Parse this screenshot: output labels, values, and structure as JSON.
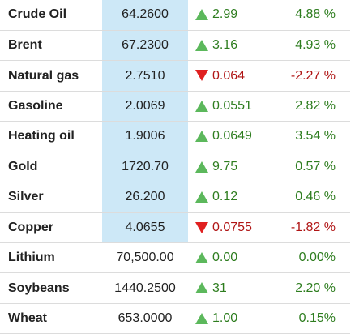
{
  "table": {
    "colors": {
      "up": "#2e7d1f",
      "down": "#b01515",
      "highlight": "#cde8f7",
      "border": "#dcdcdc"
    },
    "rows": [
      {
        "name": "Crude Oil",
        "price": "64.2600",
        "direction": "up",
        "change": "2.99",
        "percent": "4.88 %",
        "highlight": true
      },
      {
        "name": "Brent",
        "price": "67.2300",
        "direction": "up",
        "change": "3.16",
        "percent": "4.93 %",
        "highlight": true
      },
      {
        "name": "Natural gas",
        "price": "2.7510",
        "direction": "down",
        "change": "0.064",
        "percent": "-2.27 %",
        "highlight": true
      },
      {
        "name": "Gasoline",
        "price": "2.0069",
        "direction": "up",
        "change": "0.0551",
        "percent": "2.82 %",
        "highlight": true
      },
      {
        "name": "Heating oil",
        "price": "1.9006",
        "direction": "up",
        "change": "0.0649",
        "percent": "3.54 %",
        "highlight": true
      },
      {
        "name": "Gold",
        "price": "1720.70",
        "direction": "up",
        "change": "9.75",
        "percent": "0.57 %",
        "highlight": true
      },
      {
        "name": "Silver",
        "price": "26.200",
        "direction": "up",
        "change": "0.12",
        "percent": "0.46 %",
        "highlight": true
      },
      {
        "name": "Copper",
        "price": "4.0655",
        "direction": "down",
        "change": "0.0755",
        "percent": "-1.82 %",
        "highlight": true
      },
      {
        "name": "Lithium",
        "price": "70,500.00",
        "direction": "up",
        "change": "0.00",
        "percent": "0.00%",
        "highlight": false
      },
      {
        "name": "Soybeans",
        "price": "1440.2500",
        "direction": "up",
        "change": "31",
        "percent": "2.20 %",
        "highlight": false
      },
      {
        "name": "Wheat",
        "price": "653.0000",
        "direction": "up",
        "change": "1.00",
        "percent": "0.15%",
        "highlight": false
      }
    ]
  }
}
